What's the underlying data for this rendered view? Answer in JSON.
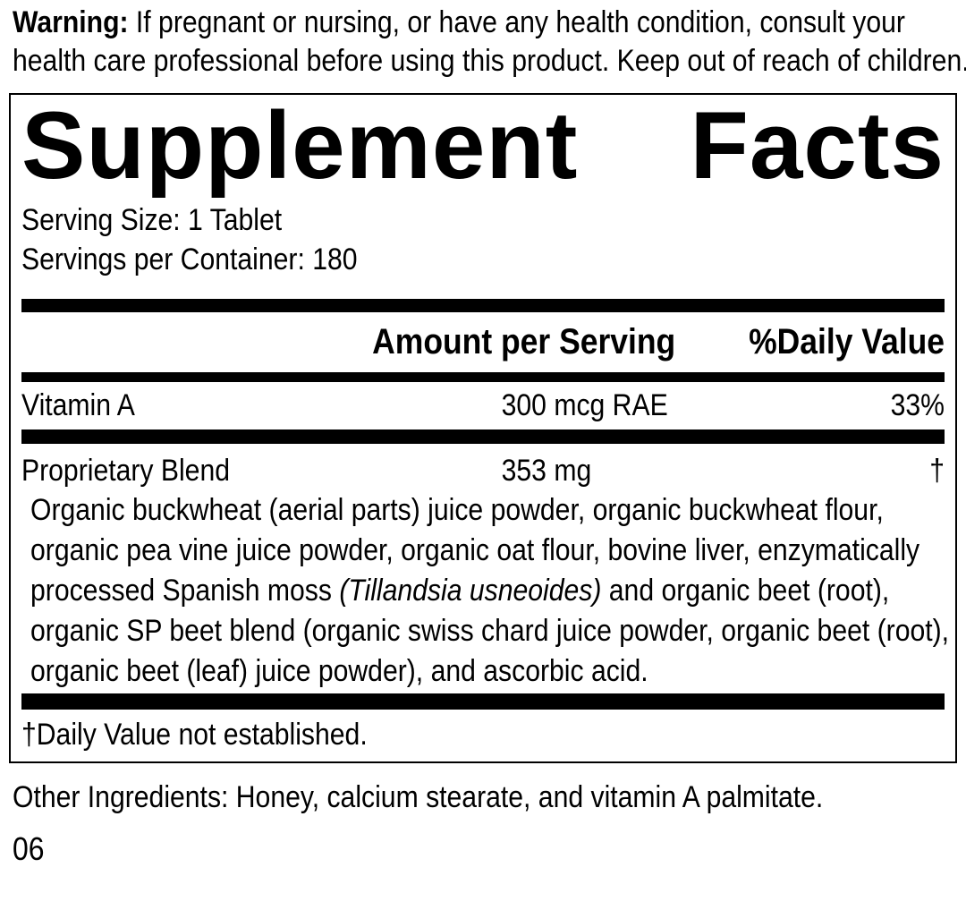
{
  "colors": {
    "text": "#000000",
    "background": "#ffffff",
    "bar": "#000000"
  },
  "warning": {
    "label": "Warning:",
    "text": " If pregnant or nursing, or have any health condition, consult your health care professional before using this product. Keep out of reach of children."
  },
  "panel": {
    "title_word1": "Supplement",
    "title_word2": "Facts",
    "serving_size": "Serving Size: 1 Tablet",
    "servings_per_container": "Servings per Container: 180",
    "columns": {
      "amount": "Amount per Serving",
      "daily_value": "%Daily Value"
    },
    "rows": [
      {
        "name": "Vitamin A",
        "amount": "300 mcg RAE",
        "dv": "33%"
      },
      {
        "name": "Proprietary Blend",
        "amount": "353 mg",
        "dv": "†"
      }
    ],
    "blend_description": {
      "part1": "Organic buckwheat (aerial parts) juice powder, organic buckwheat flour, organic pea vine juice powder, organic oat flour, bovine liver, enzymatically processed Spanish moss ",
      "italic": "(Tillandsia usneoides)",
      "part2": " and organic beet (root), organic SP beet blend (organic swiss chard juice powder, organic beet (root), organic beet (leaf) juice powder), and ascorbic acid."
    },
    "footnote": "†Daily Value not established."
  },
  "other_ingredients": "Other Ingredients: Honey, calcium stearate, and vitamin A palmitate.",
  "code": "06"
}
